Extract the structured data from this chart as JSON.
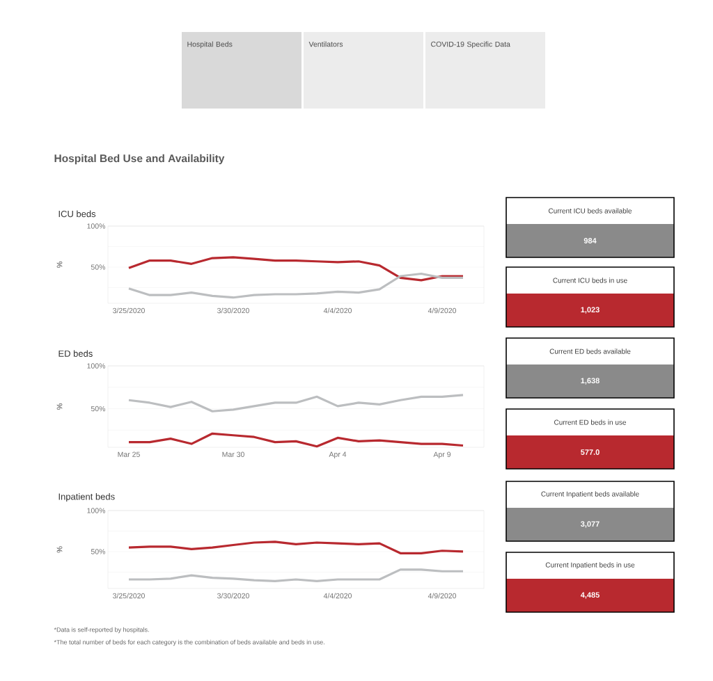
{
  "chart_data": [
    {
      "type": "other",
      "title": "Hospital Bed Use and Availability",
      "categories": [
        "Hospital Beds",
        "Ventilators",
        "COVID-19 Specific Data"
      ],
      "colors": [
        "#d9d9d9",
        "#ececec",
        "#ececec"
      ]
    },
    {
      "type": "line",
      "title": "ICU beds",
      "ylabel": "%",
      "grid": "y",
      "x": [
        "2020-03-25",
        "2020-03-26",
        "2020-03-27",
        "2020-03-28",
        "2020-03-29",
        "2020-03-30",
        "2020-03-31",
        "2020-04-01",
        "2020-04-02",
        "2020-04-03",
        "2020-04-04",
        "2020-04-05",
        "2020-04-06",
        "2020-04-07",
        "2020-04-08",
        "2020-04-09",
        "2020-04-10"
      ],
      "xlim": [
        "2020-03-24",
        "2020-04-11"
      ],
      "xticks": [
        {
          "value": "2020-03-25",
          "label": "3/25/2020"
        },
        {
          "value": "2020-03-30",
          "label": "3/30/2020"
        },
        {
          "value": "2020-04-04",
          "label": "4/4/2020"
        },
        {
          "value": "2020-04-09",
          "label": "4/9/2020"
        }
      ],
      "ylim": [
        6,
        100
      ],
      "yticks": [
        {
          "value": 100,
          "label": "100%"
        },
        {
          "value": 75,
          "label": null
        },
        {
          "value": 50,
          "label": "50%"
        },
        {
          "value": 25,
          "label": null
        }
      ],
      "series": [
        {
          "color": "#b8292f",
          "values": [
            49,
            58,
            58,
            54,
            61,
            62,
            60,
            58,
            58,
            57,
            56,
            57,
            52,
            37,
            34,
            39,
            39
          ]
        },
        {
          "color": "#bcbec0",
          "values": [
            24,
            16,
            16,
            19,
            15,
            13,
            16,
            17,
            17,
            18,
            20,
            19,
            23,
            39,
            42,
            37,
            37
          ]
        }
      ]
    },
    {
      "type": "other",
      "title": "Current ICU beds available",
      "annotations": [
        "984"
      ],
      "color": "#8a8a8a"
    },
    {
      "type": "other",
      "title": "Current ICU beds in use",
      "annotations": [
        "1,023"
      ],
      "color": "#b8292f"
    },
    {
      "type": "line",
      "title": "ED beds",
      "ylabel": "%",
      "grid": "y",
      "x": [
        "2020-03-25",
        "2020-03-26",
        "2020-03-27",
        "2020-03-28",
        "2020-03-29",
        "2020-03-30",
        "2020-03-31",
        "2020-04-01",
        "2020-04-02",
        "2020-04-03",
        "2020-04-04",
        "2020-04-05",
        "2020-04-06",
        "2020-04-07",
        "2020-04-08",
        "2020-04-09",
        "2020-04-10"
      ],
      "xlim": [
        "2020-03-24",
        "2020-04-11"
      ],
      "xticks": [
        {
          "value": "2020-03-25",
          "label": "Mar 25"
        },
        {
          "value": "2020-03-30",
          "label": "Mar 30"
        },
        {
          "value": "2020-04-04",
          "label": "Apr 4"
        },
        {
          "value": "2020-04-09",
          "label": "Apr 9"
        }
      ],
      "ylim": [
        5,
        100
      ],
      "yticks": [
        {
          "value": 100,
          "label": "100%"
        },
        {
          "value": 75,
          "label": null
        },
        {
          "value": 50,
          "label": "50%"
        },
        {
          "value": 25,
          "label": null
        }
      ],
      "series": [
        {
          "color": "#bcbec0",
          "values": [
            60,
            57,
            52,
            58,
            47,
            49,
            53,
            57,
            57,
            64,
            53,
            57,
            55,
            60,
            64,
            64,
            66
          ]
        },
        {
          "color": "#b8292f",
          "values": [
            11,
            11,
            15,
            9,
            21,
            19,
            17,
            11,
            12,
            6,
            16,
            12,
            13,
            11,
            9,
            9,
            7
          ]
        }
      ]
    },
    {
      "type": "other",
      "title": "Current ED beds available",
      "annotations": [
        "1,638"
      ],
      "color": "#8a8a8a"
    },
    {
      "type": "other",
      "title": "Current ED beds in use",
      "annotations": [
        "577.0"
      ],
      "color": "#b8292f"
    },
    {
      "type": "line",
      "title": "Inpatient beds",
      "ylabel": "%",
      "grid": "y",
      "x": [
        "2020-03-25",
        "2020-03-26",
        "2020-03-27",
        "2020-03-28",
        "2020-03-29",
        "2020-03-30",
        "2020-03-31",
        "2020-04-01",
        "2020-04-02",
        "2020-04-03",
        "2020-04-04",
        "2020-04-05",
        "2020-04-06",
        "2020-04-07",
        "2020-04-08",
        "2020-04-09",
        "2020-04-10"
      ],
      "xlim": [
        "2020-03-24",
        "2020-04-11"
      ],
      "xticks": [
        {
          "value": "2020-03-25",
          "label": "3/25/2020"
        },
        {
          "value": "2020-03-30",
          "label": "3/30/2020"
        },
        {
          "value": "2020-04-04",
          "label": "4/4/2020"
        },
        {
          "value": "2020-04-09",
          "label": "4/9/2020"
        }
      ],
      "ylim": [
        5,
        100
      ],
      "yticks": [
        {
          "value": 100,
          "label": "100%"
        },
        {
          "value": 75,
          "label": null
        },
        {
          "value": 50,
          "label": "50%"
        },
        {
          "value": 25,
          "label": null
        }
      ],
      "series": [
        {
          "color": "#b8292f",
          "values": [
            55,
            56,
            56,
            53,
            55,
            58,
            61,
            62,
            59,
            61,
            60,
            59,
            60,
            48,
            48,
            51,
            50
          ]
        },
        {
          "color": "#bcbec0",
          "values": [
            16,
            16,
            17,
            21,
            18,
            17,
            15,
            14,
            16,
            14,
            16,
            16,
            16,
            28,
            28,
            26,
            26
          ]
        }
      ]
    },
    {
      "type": "other",
      "title": "Current  Inpatient beds available",
      "annotations": [
        "3,077"
      ],
      "color": "#8a8a8a"
    },
    {
      "type": "other",
      "title": "Current Inpatient beds in use",
      "annotations": [
        "4,485"
      ],
      "color": "#b8292f"
    },
    {
      "type": "other",
      "annotations": [
        "*Data is self-reported by hospitals.",
        "*The total number of beds for each category is the combination of beds available and beds in use."
      ]
    }
  ]
}
